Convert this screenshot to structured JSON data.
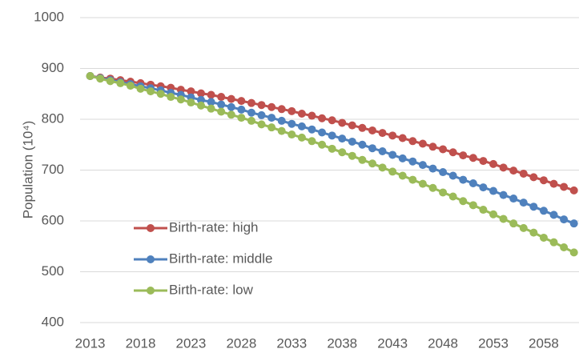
{
  "chart_data": {
    "type": "line",
    "y_label": "Population (10⁴)",
    "x": [
      2013,
      2014,
      2015,
      2016,
      2017,
      2018,
      2019,
      2020,
      2021,
      2022,
      2023,
      2024,
      2025,
      2026,
      2027,
      2028,
      2029,
      2030,
      2031,
      2032,
      2033,
      2034,
      2035,
      2036,
      2037,
      2038,
      2039,
      2040,
      2041,
      2042,
      2043,
      2044,
      2045,
      2046,
      2047,
      2048,
      2049,
      2050,
      2051,
      2052,
      2053,
      2054,
      2055,
      2056,
      2057,
      2058,
      2059,
      2060,
      2061
    ],
    "series": [
      {
        "name": "Birth-rate: high",
        "color": "#c0504d",
        "values": [
          885,
          882,
          880,
          877,
          874,
          871,
          868,
          865,
          862,
          858,
          855,
          851,
          848,
          844,
          840,
          836,
          832,
          828,
          824,
          820,
          816,
          811,
          807,
          802,
          798,
          793,
          788,
          783,
          778,
          773,
          768,
          763,
          757,
          752,
          746,
          741,
          735,
          729,
          724,
          718,
          712,
          705,
          699,
          693,
          686,
          680,
          673,
          667,
          660
        ]
      },
      {
        "name": "Birth-rate: middle",
        "color": "#4f81bd",
        "values": [
          885,
          881,
          877,
          873,
          869,
          865,
          861,
          857,
          852,
          848,
          843,
          838,
          834,
          829,
          824,
          819,
          813,
          808,
          803,
          797,
          791,
          786,
          780,
          774,
          768,
          762,
          756,
          750,
          743,
          737,
          730,
          723,
          717,
          710,
          703,
          696,
          689,
          681,
          674,
          666,
          659,
          651,
          644,
          636,
          628,
          620,
          612,
          603,
          595
        ]
      },
      {
        "name": "Birth-rate: low",
        "color": "#9bbb59",
        "values": [
          885,
          880,
          875,
          871,
          866,
          860,
          855,
          850,
          844,
          839,
          833,
          827,
          821,
          815,
          809,
          803,
          797,
          790,
          784,
          777,
          770,
          764,
          757,
          750,
          742,
          735,
          728,
          720,
          713,
          705,
          697,
          689,
          681,
          673,
          665,
          656,
          648,
          639,
          631,
          622,
          613,
          604,
          595,
          586,
          577,
          567,
          558,
          548,
          538
        ]
      }
    ],
    "xlim": [
      2012,
      2061.5
    ],
    "xticks": [
      2013,
      2018,
      2023,
      2028,
      2033,
      2038,
      2043,
      2048,
      2053,
      2058
    ],
    "ylim": [
      400,
      1000
    ],
    "yticks": [
      400,
      500,
      600,
      700,
      800,
      900,
      1000
    ],
    "grid": true,
    "legend": "lower left"
  }
}
